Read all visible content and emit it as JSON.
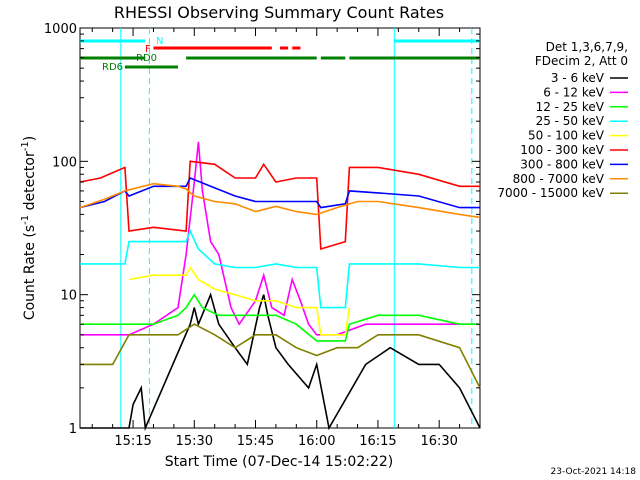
{
  "chart_data": {
    "type": "line",
    "title": "RHESSI Observing Summary Count Rates",
    "xlabel": "Start Time (07-Dec-14 15:02:22)",
    "ylabel_main": "Count Rate (s",
    "ylabel_sup1": "-1",
    "ylabel_mid": " detector",
    "ylabel_sup2": "-1",
    "ylabel_end": ")",
    "yscale": "log",
    "ylim": [
      1,
      1000
    ],
    "xlim_min": [
      902,
      1000
    ],
    "xticks_min": [
      915,
      930,
      945,
      960,
      975,
      990
    ],
    "xtick_labels": [
      "15:15",
      "15:30",
      "15:45",
      "16:00",
      "16:15",
      "16:30"
    ],
    "yticks": [
      1,
      10,
      100,
      1000
    ],
    "ytick_labels": [
      "1",
      "10",
      "100",
      "1000"
    ],
    "timestamp": "23-Oct-2021 14:18",
    "legend_header": [
      "Det 1,3,6,7,9,",
      "FDecim 2, Att 0"
    ],
    "legend_placement": "right",
    "series": [
      {
        "name": "3 - 6 keV",
        "color": "#000000",
        "segments": [
          [
            902,
            1
          ],
          [
            914,
            1
          ],
          [
            915,
            1.5
          ],
          [
            917,
            2
          ],
          [
            918,
            1
          ],
          [
            929,
            6
          ],
          [
            930,
            8
          ],
          [
            931,
            6
          ],
          [
            934,
            10
          ],
          [
            936,
            6
          ],
          [
            940,
            4
          ],
          [
            943,
            3
          ],
          [
            946,
            8
          ],
          [
            947,
            10
          ],
          [
            948,
            7
          ],
          [
            950,
            4
          ],
          [
            953,
            3
          ],
          [
            958,
            2
          ],
          [
            960,
            3
          ],
          [
            963,
            1
          ],
          [
            972,
            3
          ],
          [
            978,
            4
          ],
          [
            985,
            3
          ],
          [
            990,
            3
          ],
          [
            995,
            2
          ],
          [
            1000,
            1
          ]
        ]
      },
      {
        "name": "6 - 12 keV",
        "color": "#ff00ff",
        "segments": [
          [
            902,
            5
          ],
          [
            914,
            5
          ],
          [
            920,
            6
          ],
          [
            926,
            8
          ],
          [
            928,
            20
          ],
          [
            930,
            70
          ],
          [
            931,
            140
          ],
          [
            932,
            60
          ],
          [
            934,
            25
          ],
          [
            936,
            20
          ],
          [
            939,
            8
          ],
          [
            941,
            6
          ],
          [
            945,
            9
          ],
          [
            947,
            14
          ],
          [
            949,
            8
          ],
          [
            952,
            7
          ],
          [
            954,
            13
          ],
          [
            956,
            9
          ],
          [
            958,
            6
          ],
          [
            960,
            5
          ],
          [
            965,
            5
          ],
          [
            972,
            6
          ],
          [
            980,
            6
          ],
          [
            990,
            6
          ],
          [
            1000,
            6
          ]
        ]
      },
      {
        "name": "12 - 25 keV",
        "color": "#00ff00",
        "segments": [
          [
            902,
            6
          ],
          [
            914,
            6
          ],
          [
            920,
            6
          ],
          [
            926,
            7
          ],
          [
            928,
            8
          ],
          [
            930,
            10
          ],
          [
            932,
            8
          ],
          [
            936,
            7
          ],
          [
            940,
            7
          ],
          [
            945,
            7
          ],
          [
            950,
            7
          ],
          [
            955,
            6
          ],
          [
            960,
            4.5
          ],
          [
            967,
            4.5
          ],
          [
            968,
            6
          ],
          [
            975,
            7
          ],
          [
            985,
            7
          ],
          [
            995,
            6
          ],
          [
            1000,
            6
          ]
        ]
      },
      {
        "name": "25 - 50 keV",
        "color": "#00ffff",
        "segments": [
          [
            902,
            17
          ],
          [
            913,
            17
          ],
          [
            914,
            25
          ],
          [
            928,
            25
          ],
          [
            929,
            30
          ],
          [
            931,
            22
          ],
          [
            935,
            17
          ],
          [
            940,
            16
          ],
          [
            945,
            16
          ],
          [
            950,
            17
          ],
          [
            955,
            16
          ],
          [
            960,
            16
          ],
          [
            961,
            8
          ],
          [
            967,
            8
          ],
          [
            968,
            17
          ],
          [
            975,
            17
          ],
          [
            985,
            17
          ],
          [
            995,
            16
          ],
          [
            1000,
            16
          ]
        ]
      },
      {
        "name": "50 - 100 keV",
        "color": "#ffff00",
        "segments": [
          [
            914,
            13
          ],
          [
            920,
            14
          ],
          [
            928,
            14
          ],
          [
            929,
            16
          ],
          [
            931,
            13
          ],
          [
            935,
            11
          ],
          [
            940,
            10
          ],
          [
            945,
            9
          ],
          [
            950,
            9
          ],
          [
            955,
            8
          ],
          [
            960,
            8
          ],
          [
            961,
            5
          ],
          [
            967,
            5
          ],
          [
            968,
            8
          ]
        ]
      },
      {
        "name": "100 - 300 keV",
        "color": "#ff0000",
        "segments": [
          [
            902,
            70
          ],
          [
            907,
            75
          ],
          [
            913,
            90
          ],
          [
            914,
            30
          ],
          [
            920,
            32
          ],
          [
            928,
            30
          ],
          [
            929,
            100
          ],
          [
            935,
            95
          ],
          [
            940,
            75
          ],
          [
            945,
            75
          ],
          [
            947,
            95
          ],
          [
            950,
            70
          ],
          [
            955,
            75
          ],
          [
            960,
            75
          ],
          [
            961,
            22
          ],
          [
            967,
            25
          ],
          [
            968,
            90
          ],
          [
            975,
            90
          ],
          [
            985,
            80
          ],
          [
            995,
            65
          ],
          [
            1000,
            65
          ]
        ]
      },
      {
        "name": "300 - 800 keV",
        "color": "#0000ff",
        "segments": [
          [
            902,
            45
          ],
          [
            908,
            50
          ],
          [
            913,
            60
          ],
          [
            914,
            55
          ],
          [
            920,
            65
          ],
          [
            928,
            65
          ],
          [
            929,
            75
          ],
          [
            934,
            65
          ],
          [
            940,
            55
          ],
          [
            945,
            50
          ],
          [
            950,
            50
          ],
          [
            955,
            50
          ],
          [
            960,
            50
          ],
          [
            961,
            45
          ],
          [
            967,
            48
          ],
          [
            968,
            60
          ],
          [
            975,
            58
          ],
          [
            985,
            55
          ],
          [
            995,
            45
          ],
          [
            1000,
            45
          ]
        ]
      },
      {
        "name": "800 - 7000 keV",
        "color": "#ff8c00",
        "segments": [
          [
            902,
            45
          ],
          [
            908,
            52
          ],
          [
            913,
            60
          ],
          [
            920,
            68
          ],
          [
            926,
            65
          ],
          [
            928,
            62
          ],
          [
            930,
            55
          ],
          [
            935,
            50
          ],
          [
            940,
            48
          ],
          [
            945,
            42
          ],
          [
            950,
            46
          ],
          [
            955,
            42
          ],
          [
            960,
            40
          ],
          [
            965,
            45
          ],
          [
            970,
            50
          ],
          [
            975,
            50
          ],
          [
            985,
            45
          ],
          [
            995,
            40
          ],
          [
            1000,
            38
          ]
        ]
      },
      {
        "name": "7000 - 15000 keV",
        "color": "#808000",
        "segments": [
          [
            902,
            3
          ],
          [
            910,
            3
          ],
          [
            914,
            5
          ],
          [
            920,
            5
          ],
          [
            926,
            5
          ],
          [
            930,
            6
          ],
          [
            935,
            5
          ],
          [
            940,
            4
          ],
          [
            945,
            5
          ],
          [
            950,
            5
          ],
          [
            955,
            4
          ],
          [
            960,
            3.5
          ],
          [
            965,
            4
          ],
          [
            970,
            4
          ],
          [
            975,
            5
          ],
          [
            985,
            5
          ],
          [
            995,
            4
          ],
          [
            1000,
            2
          ]
        ]
      }
    ],
    "vlines_dashed_min": [
      919,
      998
    ],
    "vlines_solid_min": [
      912,
      979
    ],
    "flags": [
      {
        "label": "N",
        "color": "#00ffff",
        "segments": [
          [
            902,
            918
          ],
          [
            979,
            1000
          ]
        ]
      },
      {
        "label": "F",
        "color": "#ff0000",
        "segments": [
          [
            920,
            949
          ],
          [
            951,
            953
          ],
          [
            954,
            956
          ]
        ]
      },
      {
        "label": "RD0",
        "color": "#008000",
        "segments": [
          [
            902,
            918
          ],
          [
            928,
            960
          ],
          [
            961,
            967
          ],
          [
            968,
            1000
          ]
        ]
      },
      {
        "label": "RD6",
        "color": "#008000",
        "segments": [
          [
            913,
            926
          ]
        ]
      }
    ]
  }
}
